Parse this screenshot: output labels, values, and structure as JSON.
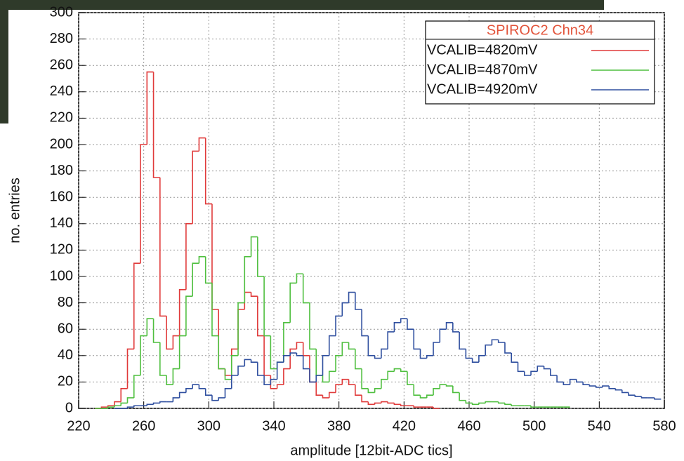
{
  "chart_data": {
    "type": "step",
    "legend_title": "SPIROC2 Chn34",
    "xlabel": "amplitude [12bit-ADC tics]",
    "ylabel": "no. entries",
    "x": [
      232,
      236,
      240,
      244,
      248,
      252,
      256,
      260,
      264,
      268,
      272,
      276,
      280,
      284,
      288,
      292,
      296,
      300,
      304,
      308,
      312,
      316,
      320,
      324,
      328,
      332,
      336,
      340,
      344,
      348,
      352,
      356,
      360,
      364,
      368,
      372,
      376,
      380,
      384,
      388,
      392,
      396,
      400,
      404,
      408,
      412,
      416,
      420,
      424,
      428,
      432,
      436,
      440,
      444,
      448,
      452,
      456,
      460,
      464,
      468,
      472,
      476,
      480,
      484,
      488,
      492,
      496,
      500,
      504,
      508,
      512,
      516,
      520,
      524,
      528,
      532,
      536,
      540,
      544,
      548,
      552,
      556,
      560,
      564,
      568,
      572,
      576
    ],
    "series": [
      {
        "name": "VCALIB=4820mV",
        "color": "#e03a3a",
        "values": [
          0,
          1,
          2,
          5,
          15,
          45,
          110,
          200,
          255,
          175,
          70,
          45,
          55,
          90,
          140,
          195,
          205,
          155,
          75,
          30,
          25,
          45,
          75,
          88,
          85,
          55,
          25,
          15,
          18,
          30,
          45,
          50,
          40,
          20,
          10,
          8,
          12,
          18,
          22,
          18,
          10,
          5,
          3,
          4,
          5,
          4,
          3,
          2,
          2,
          1,
          1,
          1,
          0,
          null,
          null,
          null,
          null,
          null,
          null,
          null,
          null,
          null,
          null,
          null,
          null,
          null,
          null,
          null,
          null,
          null,
          null,
          null,
          null,
          null,
          null,
          null,
          null,
          null,
          null,
          null,
          null,
          null,
          null,
          null,
          null,
          null,
          null
        ]
      },
      {
        "name": "VCALIB=4870mV",
        "color": "#4fbf3f",
        "values": [
          0,
          0,
          1,
          2,
          4,
          8,
          25,
          55,
          68,
          50,
          25,
          18,
          30,
          55,
          85,
          110,
          115,
          95,
          55,
          30,
          22,
          40,
          80,
          115,
          130,
          100,
          55,
          30,
          35,
          65,
          95,
          102,
          80,
          45,
          25,
          20,
          28,
          40,
          50,
          45,
          30,
          15,
          12,
          15,
          22,
          28,
          30,
          28,
          18,
          10,
          8,
          10,
          15,
          18,
          17,
          12,
          6,
          4,
          3,
          4,
          5,
          5,
          4,
          3,
          2,
          2,
          2,
          1,
          1,
          1,
          1,
          1,
          1,
          null,
          null,
          null,
          null,
          null,
          null,
          null,
          null,
          null,
          null,
          null,
          null,
          null,
          null
        ]
      },
      {
        "name": "VCALIB=4920mV",
        "color": "#2f4f9f",
        "values": [
          null,
          null,
          null,
          0,
          0,
          1,
          2,
          2,
          3,
          4,
          5,
          5,
          8,
          12,
          15,
          18,
          15,
          10,
          6,
          8,
          15,
          25,
          32,
          37,
          35,
          25,
          18,
          22,
          35,
          40,
          42,
          40,
          30,
          20,
          25,
          40,
          55,
          70,
          80,
          88,
          75,
          55,
          40,
          38,
          45,
          58,
          65,
          68,
          60,
          45,
          38,
          40,
          50,
          60,
          65,
          58,
          45,
          38,
          35,
          40,
          48,
          52,
          50,
          42,
          35,
          28,
          25,
          28,
          32,
          30,
          25,
          20,
          18,
          22,
          20,
          18,
          17,
          16,
          17,
          15,
          14,
          12,
          10,
          9,
          8,
          8,
          7
        ]
      }
    ],
    "xlim": [
      220,
      580
    ],
    "xticks": [
      220,
      260,
      300,
      340,
      380,
      420,
      460,
      500,
      540,
      580
    ],
    "ylim": [
      0,
      300
    ],
    "yticks": [
      0,
      20,
      40,
      60,
      80,
      100,
      120,
      140,
      160,
      180,
      200,
      220,
      240,
      260,
      280,
      300
    ],
    "grid": true,
    "legend": "upper right"
  }
}
